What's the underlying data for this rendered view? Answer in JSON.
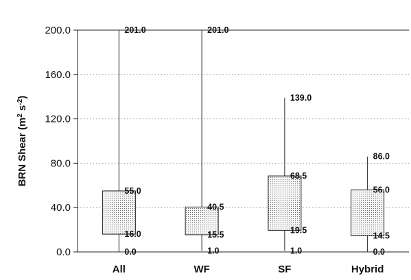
{
  "chart_data": {
    "type": "boxplot",
    "title": "",
    "xlabel": "",
    "ylabel": {
      "main": "BRN Shear (m",
      "sup1": "2",
      "mid": " s",
      "sup2": "-2",
      "end": ")"
    },
    "ylim": [
      0,
      200
    ],
    "yticks": [
      "0.0",
      "40.0",
      "80.0",
      "120.0",
      "160.0",
      "200.0"
    ],
    "ytick_values": [
      0,
      40,
      80,
      120,
      160,
      200
    ],
    "grid": true,
    "categories": [
      "All",
      "WF",
      "SF",
      "Hybrid"
    ],
    "boxes": [
      {
        "category": "All",
        "min": 0.0,
        "q1": 16.0,
        "q3": 55.0,
        "max": 201.0,
        "labels": {
          "min": "0.0",
          "q1": "16.0",
          "q3": "55.0",
          "max": "201.0"
        }
      },
      {
        "category": "WF",
        "min": 1.0,
        "q1": 15.5,
        "q3": 40.5,
        "max": 201.0,
        "labels": {
          "min": "1.0",
          "q1": "15.5",
          "q3": "40.5",
          "max": "201.0"
        }
      },
      {
        "category": "SF",
        "min": 1.0,
        "q1": 19.5,
        "q3": 68.5,
        "max": 139.0,
        "labels": {
          "min": "1.0",
          "q1": "19.5",
          "q3": "68.5",
          "max": "139.0"
        }
      },
      {
        "category": "Hybrid",
        "min": 0.0,
        "q1": 14.5,
        "q3": 56.0,
        "max": 86.0,
        "labels": {
          "min": "0.0",
          "q1": "14.5",
          "q3": "56.0",
          "max": "86.0"
        }
      }
    ],
    "colors": {
      "box_fill": "#e6e6e6",
      "stroke": "#222222",
      "grid": "#9a9a9a"
    }
  }
}
